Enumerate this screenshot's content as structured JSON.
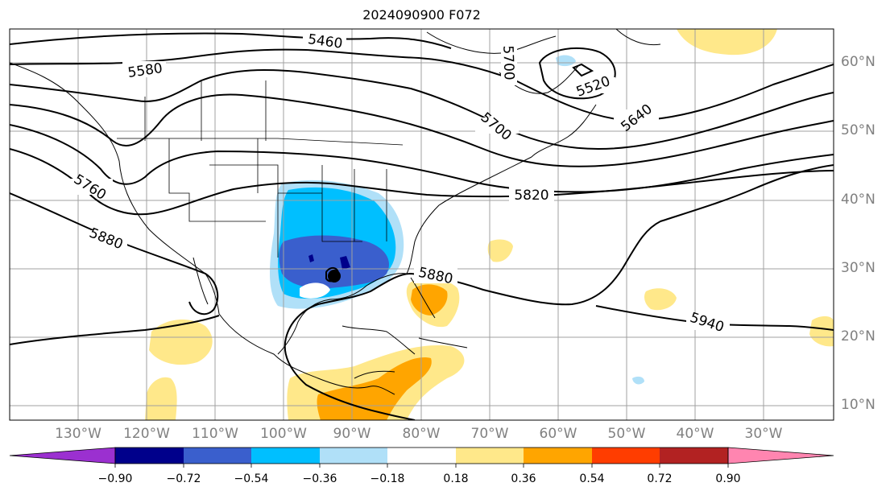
{
  "title": "2024090900 F072",
  "lat_labels": [
    "60°N",
    "50°N",
    "40°N",
    "30°N",
    "20°N",
    "10°N"
  ],
  "lon_labels": [
    "130°W",
    "120°W",
    "110°W",
    "100°W",
    "90°W",
    "80°W",
    "70°W",
    "60°W",
    "50°W",
    "40°W",
    "30°W"
  ],
  "contour_labels": [
    "5460",
    "5580",
    "5520",
    "5640",
    "5700",
    "5820",
    "5760",
    "5880",
    "5880",
    "5940",
    "5700"
  ],
  "colorbar": {
    "ticks": [
      "−0.90",
      "−0.72",
      "−0.54",
      "−0.36",
      "−0.18",
      "0.18",
      "0.36",
      "0.54",
      "0.72",
      "0.90"
    ],
    "colors": [
      "#9b30d0",
      "#00008b",
      "#3a5fcd",
      "#00bfff",
      "#b0e0f8",
      "#ffffff",
      "#ffe88a",
      "#ffa500",
      "#ff3d00",
      "#b22222",
      "#ff85b0"
    ]
  },
  "chart_data": {
    "type": "contour_map",
    "title": "2024090900 F072",
    "lat_ticks": [
      60,
      50,
      40,
      30,
      20,
      10
    ],
    "lon_ticks": [
      -130,
      -120,
      -110,
      -100,
      -90,
      -80,
      -70,
      -60,
      -50,
      -40,
      -30
    ],
    "contour_values": [
      5460,
      5520,
      5580,
      5640,
      5700,
      5760,
      5820,
      5880,
      5940
    ],
    "shading_levels": [
      -0.9,
      -0.72,
      -0.54,
      -0.36,
      -0.18,
      0.18,
      0.36,
      0.54,
      0.72,
      0.9
    ],
    "colorbar_extend": "both"
  }
}
